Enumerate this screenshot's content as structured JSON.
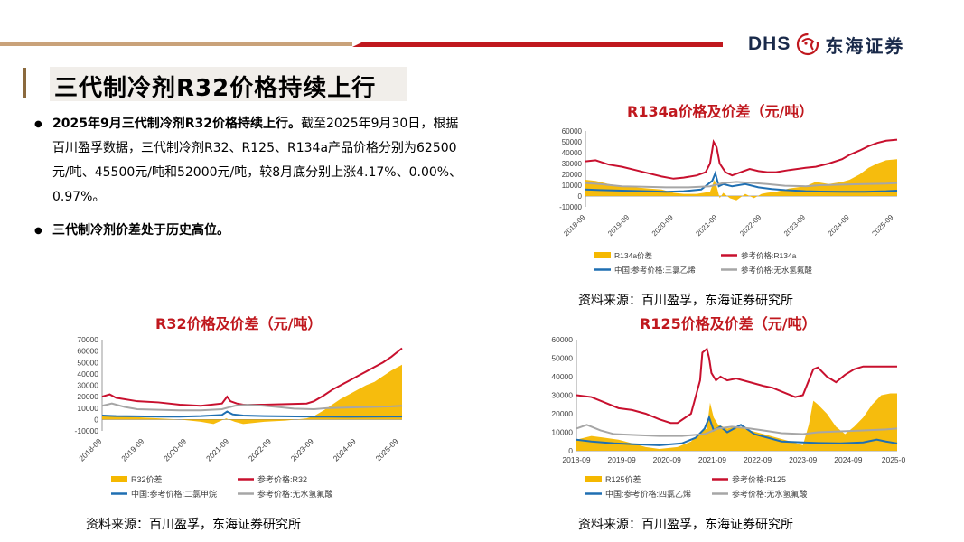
{
  "header": {
    "logo_text": "DHS",
    "logo_cn": "东海证券"
  },
  "title": "三代制冷剂R32价格持续上行",
  "bullets": [
    {
      "bold": "2025年9月三代制冷剂R32价格持续上行。",
      "text": "截至2025年9月30日，根据百川盈孚数据，三代制冷剂R32、R125、R134a产品价格分别为62500元/吨、45500元/吨和52000元/吨，较8月底分别上涨4.17%、0.00%、0.97%。"
    },
    {
      "bold": "三代制冷剂价差处于历史高位。",
      "text": ""
    }
  ],
  "colors": {
    "accent_red": "#c0181e",
    "spread": "#f5b800",
    "price": "#c8102e",
    "raw1": "#1f6fb2",
    "raw2": "#a6a6a6"
  },
  "chart_data": [
    {
      "id": "r134a",
      "type": "line",
      "title": "R134a价格及价差（元/吨）",
      "ylim": [
        -10000,
        60000
      ],
      "yticks": [
        -10000,
        0,
        10000,
        20000,
        30000,
        40000,
        50000,
        60000
      ],
      "xlim": [
        2018.67,
        2025.75
      ],
      "xticks": [
        "2018-09",
        "2019-09",
        "2020-09",
        "2021-09",
        "2022-09",
        "2023-09",
        "2024-09",
        "2025-09"
      ],
      "x_rotated": true,
      "series": [
        {
          "name": "R134a价差",
          "kind": "area",
          "color": "#f5b800",
          "x": [
            2018.67,
            2018.9,
            2019.2,
            2019.5,
            2019.8,
            2020.1,
            2020.4,
            2020.67,
            2020.9,
            2021.2,
            2021.5,
            2021.6,
            2021.65,
            2021.72,
            2021.8,
            2021.95,
            2022.1,
            2022.3,
            2022.5,
            2022.67,
            2022.8,
            2023.0,
            2023.3,
            2023.67,
            2023.9,
            2024.2,
            2024.5,
            2024.67,
            2024.9,
            2025.1,
            2025.3,
            2025.5,
            2025.75
          ],
          "y": [
            15000,
            14000,
            11000,
            9000,
            8000,
            7000,
            6000,
            3000,
            2000,
            2000,
            4000,
            15000,
            9000,
            -2000,
            3000,
            -2000,
            -4000,
            2000,
            -2000,
            2000,
            3000,
            4000,
            7000,
            9000,
            13000,
            11000,
            13000,
            15000,
            20000,
            26000,
            30000,
            33000,
            34000
          ]
        },
        {
          "name": "参考价格:R134a",
          "kind": "line",
          "color": "#c8102e",
          "x": [
            2018.67,
            2018.9,
            2019.2,
            2019.5,
            2019.8,
            2020.1,
            2020.4,
            2020.67,
            2020.9,
            2021.2,
            2021.4,
            2021.5,
            2021.58,
            2021.65,
            2021.72,
            2021.85,
            2022.0,
            2022.2,
            2022.4,
            2022.6,
            2022.8,
            2023.0,
            2023.3,
            2023.67,
            2023.9,
            2024.2,
            2024.5,
            2024.67,
            2024.9,
            2025.1,
            2025.3,
            2025.5,
            2025.75
          ],
          "y": [
            32000,
            33000,
            29000,
            27000,
            24000,
            21000,
            18000,
            16000,
            17000,
            19000,
            22000,
            30000,
            50000,
            45000,
            30000,
            22000,
            19000,
            22000,
            25000,
            23000,
            22000,
            22000,
            24000,
            26000,
            27000,
            30000,
            34000,
            38000,
            42000,
            46000,
            49000,
            51000,
            52000
          ]
        },
        {
          "name": "中国:参考价格:三氯乙烯",
          "kind": "line",
          "color": "#1f6fb2",
          "x": [
            2018.67,
            2019.0,
            2019.5,
            2020.0,
            2020.5,
            2020.9,
            2021.3,
            2021.55,
            2021.62,
            2021.7,
            2021.8,
            2022.0,
            2022.3,
            2022.6,
            2022.9,
            2023.2,
            2023.67,
            2024.0,
            2024.5,
            2025.0,
            2025.5,
            2025.75
          ],
          "y": [
            6000,
            5500,
            5000,
            4500,
            4000,
            4500,
            6000,
            14000,
            21000,
            9000,
            11000,
            9000,
            11000,
            8000,
            6500,
            5500,
            4500,
            4200,
            4000,
            4000,
            4500,
            5000
          ]
        },
        {
          "name": "参考价格:无水氢氟酸",
          "kind": "line",
          "color": "#a6a6a6",
          "x": [
            2018.67,
            2019.0,
            2019.5,
            2020.0,
            2020.5,
            2021.0,
            2021.5,
            2021.8,
            2022.1,
            2022.5,
            2022.8,
            2023.2,
            2023.67,
            2024.0,
            2024.5,
            2025.0,
            2025.5,
            2025.75
          ],
          "y": [
            12000,
            11000,
            9000,
            8500,
            8000,
            8000,
            9000,
            12000,
            13000,
            12000,
            11000,
            9500,
            9000,
            10000,
            10500,
            11000,
            11500,
            12000
          ]
        }
      ],
      "legend": [
        "R134a价差",
        "参考价格:R134a",
        "中国:参考价格:三氯乙烯",
        "参考价格:无水氢氟酸"
      ]
    },
    {
      "id": "r32",
      "type": "line",
      "title": "R32价格及价差（元/吨）",
      "ylim": [
        -10000,
        70000
      ],
      "yticks": [
        -10000,
        0,
        10000,
        20000,
        30000,
        40000,
        50000,
        60000,
        70000
      ],
      "xlim": [
        2018.67,
        2025.75
      ],
      "xticks": [
        "2018-09",
        "2019-09",
        "2020-09",
        "2021-09",
        "2022-09",
        "2023-09",
        "2024-09",
        "2025-09"
      ],
      "x_rotated": true,
      "series": [
        {
          "name": "R32价差",
          "kind": "area",
          "color": "#f5b800",
          "x": [
            2018.67,
            2019.0,
            2019.5,
            2020.0,
            2020.5,
            2021.0,
            2021.3,
            2021.6,
            2021.8,
            2022.0,
            2022.5,
            2023.0,
            2023.5,
            2023.67,
            2023.9,
            2024.1,
            2024.3,
            2024.5,
            2024.7,
            2024.9,
            2025.1,
            2025.3,
            2025.5,
            2025.75
          ],
          "y": [
            4000,
            3000,
            2000,
            1000,
            0,
            -2000,
            -4000,
            1000,
            -2000,
            -4000,
            -2000,
            -1000,
            1000,
            3000,
            8000,
            13000,
            18000,
            22000,
            26000,
            30000,
            33000,
            38000,
            43000,
            48000
          ]
        },
        {
          "name": "参考价格:R32",
          "kind": "line",
          "color": "#c8102e",
          "x": [
            2018.67,
            2018.85,
            2019.0,
            2019.5,
            2020.0,
            2020.5,
            2021.0,
            2021.5,
            2021.62,
            2021.7,
            2021.85,
            2022.0,
            2022.5,
            2023.0,
            2023.5,
            2023.67,
            2023.9,
            2024.1,
            2024.3,
            2024.5,
            2024.7,
            2024.9,
            2025.1,
            2025.3,
            2025.5,
            2025.75
          ],
          "y": [
            20000,
            22000,
            19000,
            16000,
            15000,
            13000,
            12000,
            14000,
            20000,
            16000,
            14000,
            13000,
            13000,
            13500,
            14000,
            16000,
            21000,
            26000,
            30000,
            34000,
            38000,
            42000,
            46000,
            50000,
            55000,
            62500
          ]
        },
        {
          "name": "中国:参考价格:二氯甲烷",
          "kind": "line",
          "color": "#1f6fb2",
          "x": [
            2018.67,
            2019.0,
            2019.5,
            2020.0,
            2020.5,
            2021.0,
            2021.5,
            2021.62,
            2021.75,
            2022.0,
            2022.5,
            2023.0,
            2023.67,
            2024.0,
            2024.5,
            2025.0,
            2025.5,
            2025.75
          ],
          "y": [
            3500,
            3000,
            2800,
            2500,
            2500,
            3000,
            4000,
            7000,
            4500,
            3500,
            3000,
            2800,
            2500,
            2500,
            2400,
            2500,
            2600,
            2600
          ]
        },
        {
          "name": "参考价格:无水氢氟酸",
          "kind": "line",
          "color": "#a6a6a6",
          "x": [
            2018.67,
            2018.9,
            2019.2,
            2019.5,
            2020.0,
            2020.5,
            2021.0,
            2021.5,
            2021.8,
            2022.1,
            2022.5,
            2022.8,
            2023.2,
            2023.67,
            2024.0,
            2024.5,
            2025.0,
            2025.5,
            2025.75
          ],
          "y": [
            12000,
            14000,
            11000,
            9000,
            8500,
            8000,
            8000,
            9000,
            12000,
            13000,
            12000,
            11000,
            9500,
            9000,
            10000,
            10500,
            11000,
            11500,
            12000
          ]
        }
      ],
      "legend": [
        "R32价差",
        "参考价格:R32",
        "中国:参考价格:二氯甲烷",
        "参考价格:无水氢氟酸"
      ]
    },
    {
      "id": "r125",
      "type": "line",
      "title": "R125价格及价差（元/吨）",
      "ylim": [
        0,
        60000
      ],
      "yticks": [
        0,
        10000,
        20000,
        30000,
        40000,
        50000,
        60000
      ],
      "xlim": [
        2018.67,
        2025.75
      ],
      "xticks": [
        "2018-09",
        "2019-09",
        "2020-09",
        "2021-09",
        "2022-09",
        "2023-09",
        "2024-09",
        "2025-0"
      ],
      "x_rotated": false,
      "series": [
        {
          "name": "R125价差",
          "kind": "area",
          "color": "#f5b800",
          "x": [
            2018.67,
            2019.0,
            2019.3,
            2019.6,
            2019.9,
            2020.2,
            2020.5,
            2020.9,
            2021.2,
            2021.4,
            2021.55,
            2021.62,
            2021.7,
            2021.8,
            2022.0,
            2022.2,
            2022.5,
            2022.8,
            2023.1,
            2023.4,
            2023.67,
            2023.8,
            2023.9,
            2024.0,
            2024.2,
            2024.4,
            2024.6,
            2024.8,
            2025.0,
            2025.2,
            2025.4,
            2025.6,
            2025.75
          ],
          "y": [
            6000,
            8000,
            7000,
            6000,
            4000,
            2000,
            1000,
            2000,
            5000,
            10000,
            12000,
            26000,
            18000,
            14000,
            12000,
            13000,
            11000,
            9000,
            7000,
            5000,
            3000,
            14000,
            27000,
            25000,
            20000,
            13000,
            9000,
            13000,
            18000,
            25000,
            30000,
            31000,
            31000
          ]
        },
        {
          "name": "参考价格:R125",
          "kind": "line",
          "color": "#c8102e",
          "x": [
            2018.67,
            2019.0,
            2019.3,
            2019.6,
            2019.9,
            2020.2,
            2020.5,
            2020.75,
            2020.9,
            2021.2,
            2021.4,
            2021.45,
            2021.55,
            2021.6,
            2021.65,
            2021.75,
            2021.85,
            2022.0,
            2022.2,
            2022.5,
            2022.8,
            2023.0,
            2023.2,
            2023.5,
            2023.67,
            2023.8,
            2023.9,
            2024.0,
            2024.2,
            2024.4,
            2024.6,
            2024.8,
            2025.0,
            2025.3,
            2025.75
          ],
          "y": [
            30000,
            29000,
            26000,
            23000,
            22000,
            20000,
            17000,
            15000,
            15000,
            20000,
            38000,
            53000,
            55000,
            50000,
            42000,
            38000,
            40000,
            38000,
            39000,
            37000,
            35000,
            34000,
            32000,
            29000,
            30000,
            38000,
            44000,
            45000,
            40000,
            37000,
            41000,
            44000,
            45500,
            45500,
            45500
          ]
        },
        {
          "name": "中国:参考价格:四氯乙烯",
          "kind": "line",
          "color": "#1f6fb2",
          "x": [
            2018.67,
            2019.0,
            2019.5,
            2020.0,
            2020.5,
            2021.0,
            2021.3,
            2021.5,
            2021.6,
            2021.7,
            2021.85,
            2022.0,
            2022.3,
            2022.6,
            2022.9,
            2023.2,
            2023.67,
            2024.0,
            2024.5,
            2025.0,
            2025.3,
            2025.5,
            2025.75
          ],
          "y": [
            6000,
            5000,
            4000,
            3500,
            3000,
            4000,
            7000,
            12000,
            18000,
            11000,
            13000,
            10000,
            14000,
            9000,
            7000,
            5000,
            4500,
            4200,
            4000,
            4500,
            6000,
            5000,
            4000
          ]
        },
        {
          "name": "参考价格:无水氢氟酸",
          "kind": "line",
          "color": "#a6a6a6",
          "x": [
            2018.67,
            2018.9,
            2019.2,
            2019.5,
            2020.0,
            2020.5,
            2021.0,
            2021.5,
            2021.8,
            2022.1,
            2022.5,
            2022.8,
            2023.2,
            2023.67,
            2024.0,
            2024.5,
            2025.0,
            2025.5,
            2025.75
          ],
          "y": [
            12000,
            14000,
            11000,
            9000,
            8500,
            8000,
            8000,
            9000,
            12000,
            13000,
            12000,
            11000,
            9500,
            9000,
            10000,
            10500,
            11000,
            11500,
            12000
          ]
        }
      ],
      "legend": [
        "R125价差",
        "参考价格:R125",
        "中国:参考价格:四氯乙烯",
        "参考价格:无水氢氟酸"
      ]
    }
  ],
  "sources": {
    "r134a": "资料来源：百川盈孚，东海证券研究所",
    "r32": "资料来源：百川盈孚，东海证券研究所",
    "r125": "资料来源：百川盈孚，东海证券研究所"
  }
}
